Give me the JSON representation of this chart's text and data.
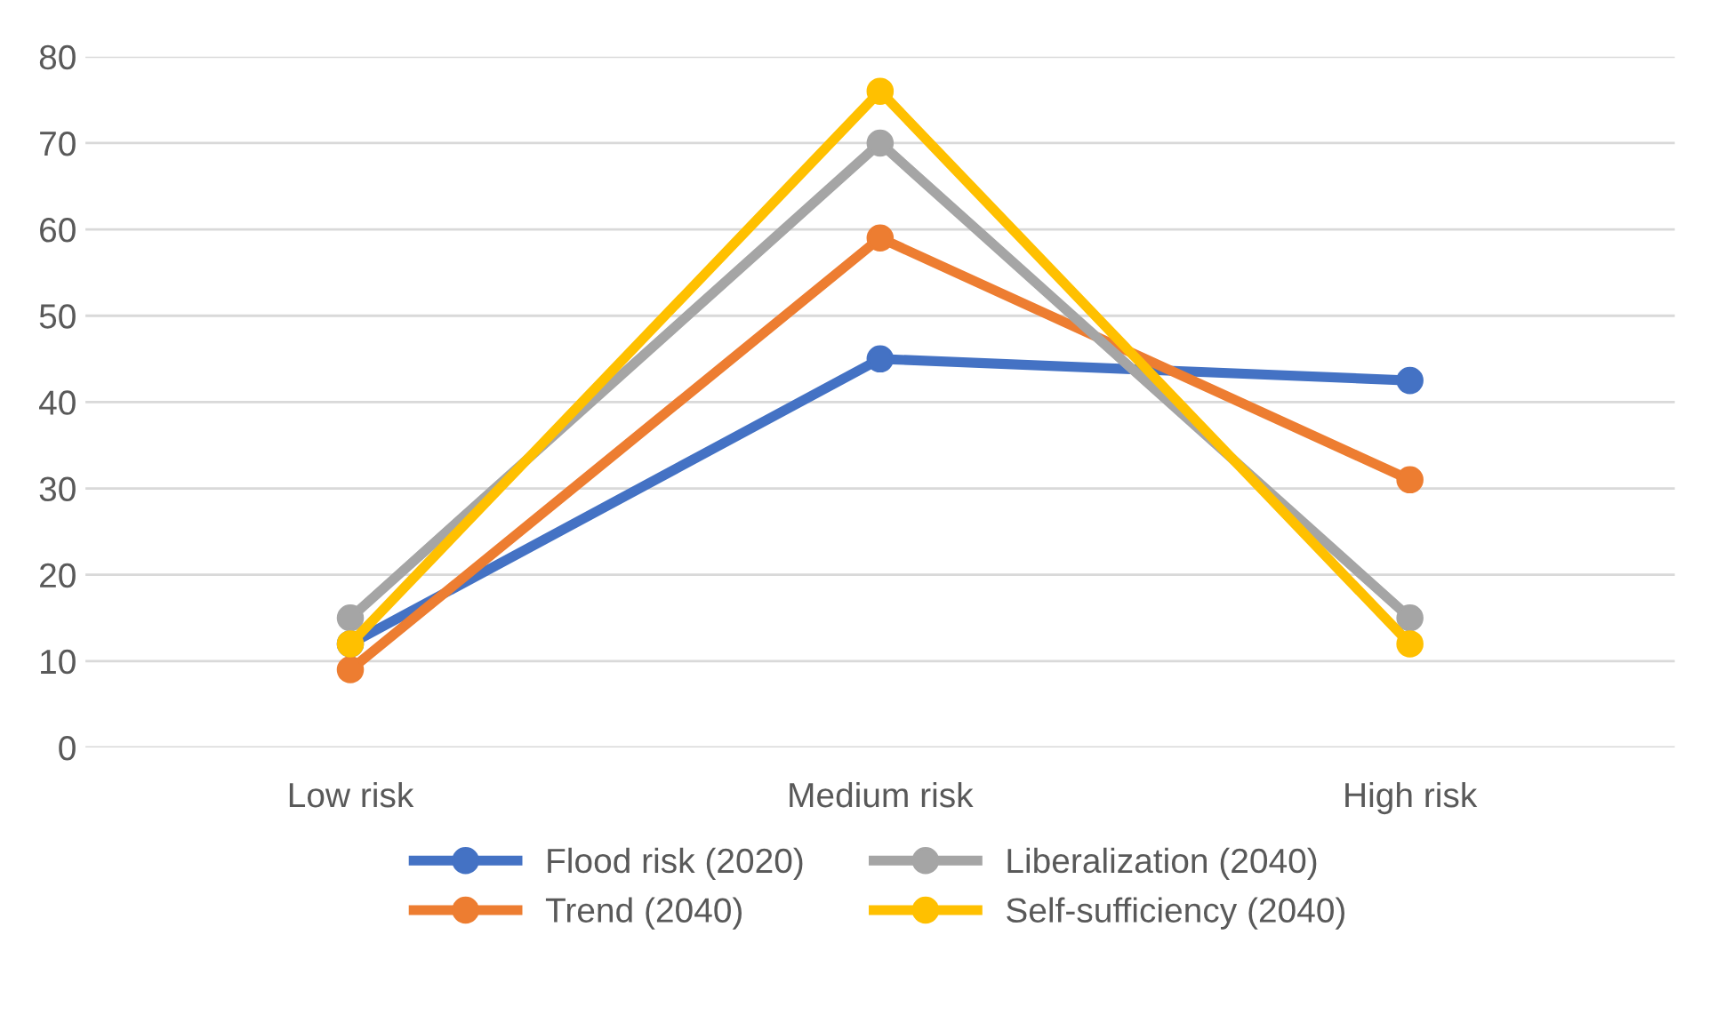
{
  "chart_data": {
    "type": "line",
    "categories": [
      "Low risk",
      "Medium risk",
      "High risk"
    ],
    "series": [
      {
        "name": "Flood risk (2020)",
        "color": "#4472c4",
        "values": [
          12,
          45,
          42.5
        ]
      },
      {
        "name": "Trend (2040)",
        "color": "#ed7d31",
        "values": [
          9,
          59,
          31
        ]
      },
      {
        "name": "Liberalization (2040)",
        "color": "#a5a5a5",
        "values": [
          15,
          70,
          15
        ]
      },
      {
        "name": "Self-sufficiency (2040)",
        "color": "#ffc000",
        "values": [
          12,
          76,
          12
        ]
      }
    ],
    "ylim": [
      0,
      80
    ],
    "yticks": [
      0,
      10,
      20,
      30,
      40,
      50,
      60,
      70,
      80
    ],
    "grid": "y",
    "legend": "bottom",
    "marker": "circle",
    "line_style": "solid"
  }
}
